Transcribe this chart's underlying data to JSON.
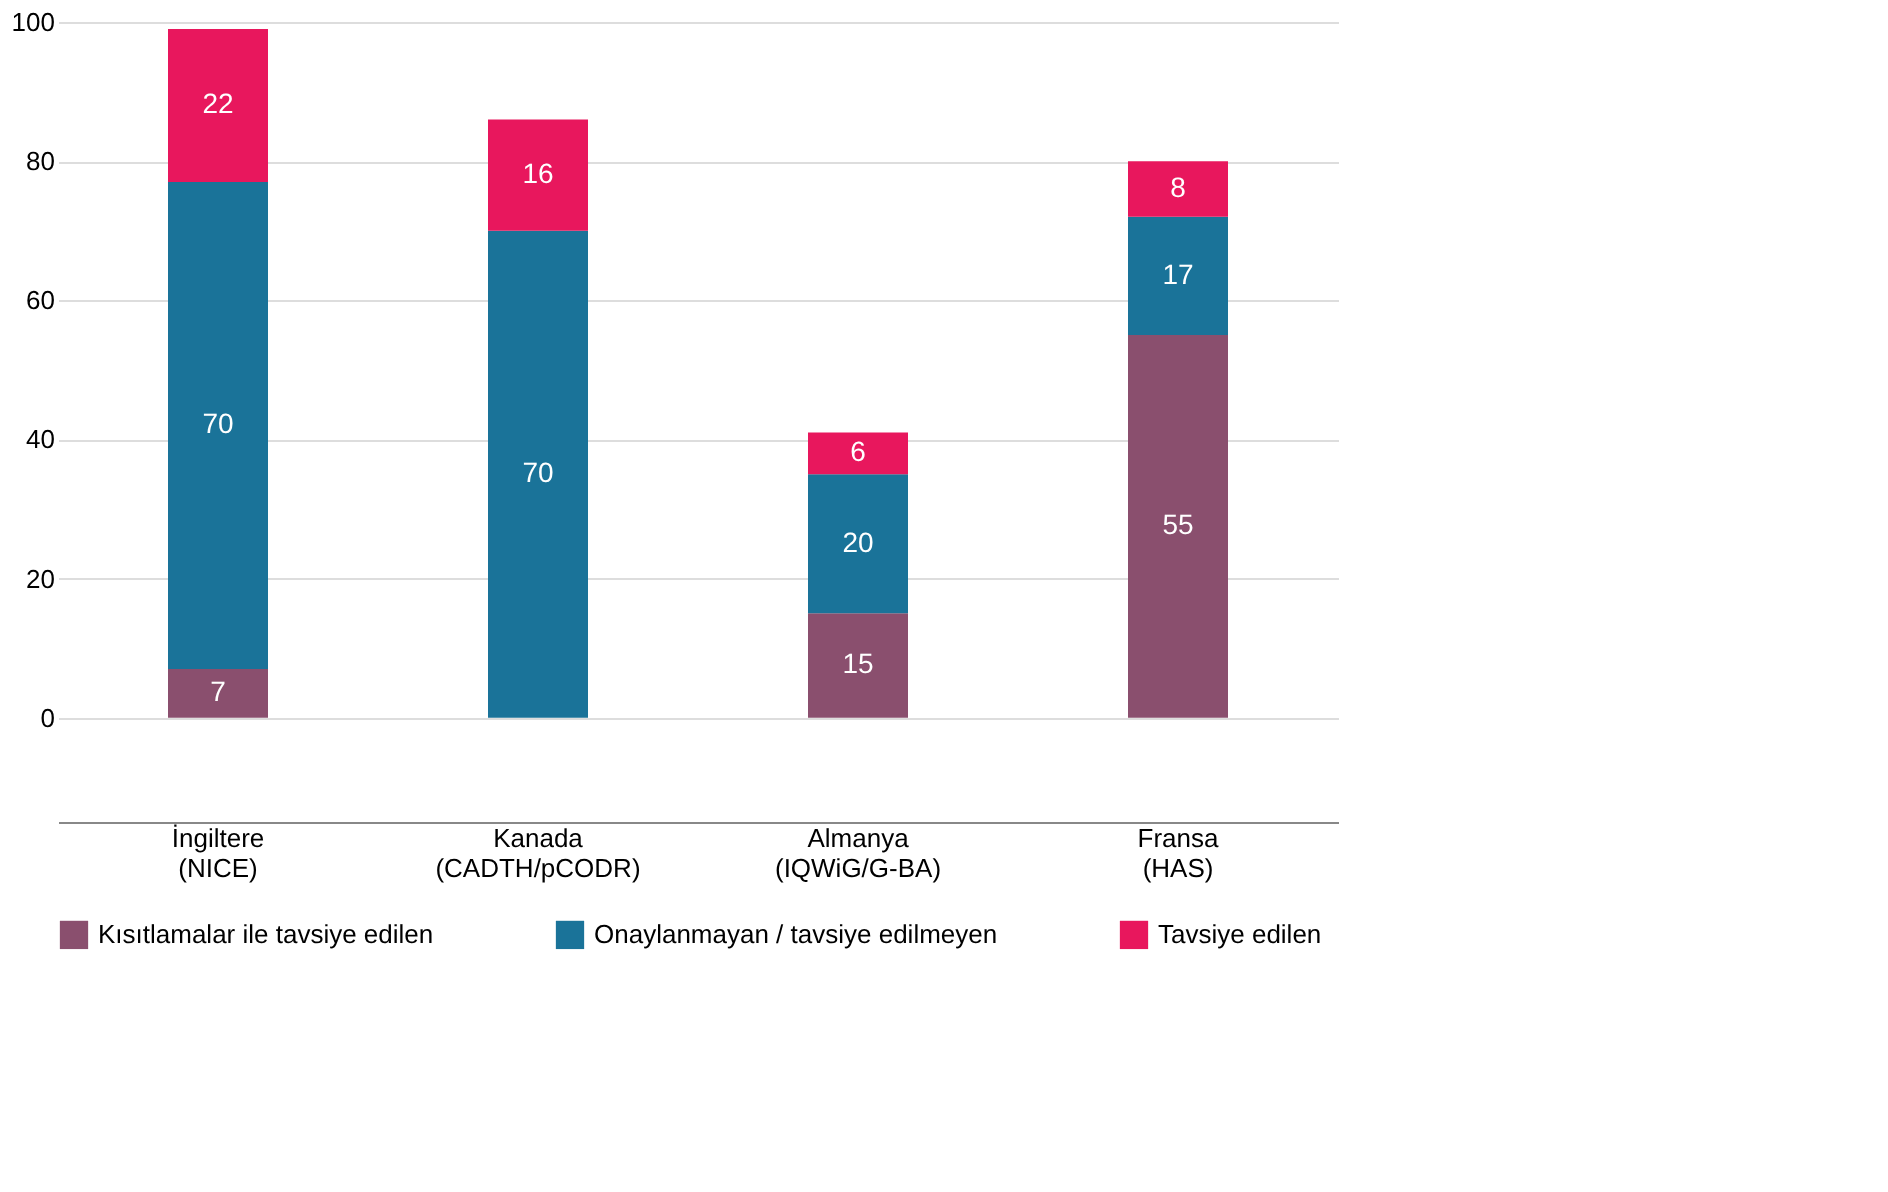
{
  "chart_data": {
    "type": "bar",
    "stacked": true,
    "data_labels": true,
    "grid": "y",
    "legend": "bottom",
    "categories": [
      "İngiltere\n(NICE)",
      "Kanada\n(CADTH/pCODR)",
      "Almanya\n(IQWiG/G-BA)",
      "Fransa\n(HAS)"
    ],
    "ylim": [
      -15,
      100
    ],
    "yticks": [
      0,
      20,
      40,
      60,
      80,
      100
    ],
    "series": [
      {
        "name": "Kısıtlamalar ile tavsiye edilen",
        "color": "#8a4f6e",
        "values": [
          7,
          null,
          15,
          55
        ]
      },
      {
        "name": "Onaylanmayan / tavsiye edilmeyen",
        "color": "#1a7399",
        "values": [
          70,
          70,
          20,
          17
        ]
      },
      {
        "name": "Tavsiye edilen",
        "color": "#e8175d",
        "values": [
          22,
          16,
          6,
          8
        ]
      }
    ]
  }
}
